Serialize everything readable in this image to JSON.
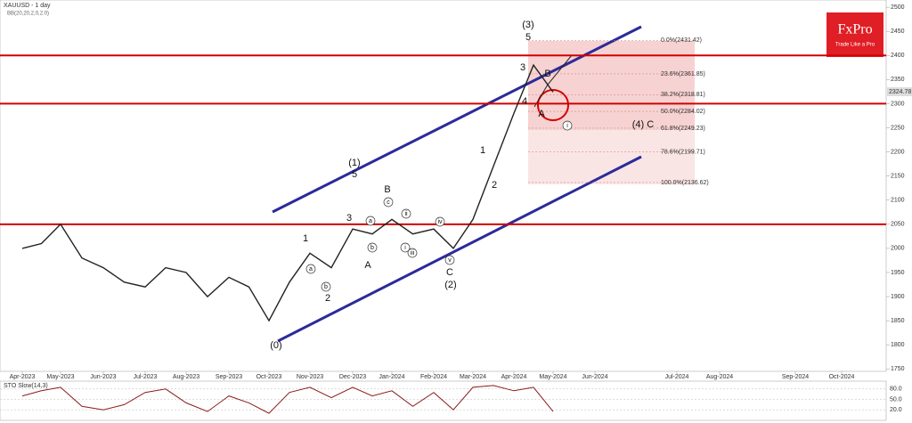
{
  "chart_data": {
    "type": "line",
    "title": "XAUUSD - 1 day",
    "subtitle": "BB(20,20,2,0,2.0)",
    "brand": "FxPro",
    "brand_tagline": "Trade Like a Pro",
    "categories": [
      "Apr-2023",
      null,
      "May-2023",
      null,
      "Jun-2023",
      null,
      "Jul-2023",
      null,
      "Aug-2023",
      null,
      "Sep-2023",
      null,
      "Oct-2023",
      null,
      "Nov-2023",
      null,
      "Dec-2023",
      null,
      "Jan-2024",
      null,
      "Feb-2024",
      null,
      "Mar-2024",
      null,
      "Apr-2024",
      null,
      "May-2024",
      null,
      "Jun-2024",
      null,
      "Jul-2024",
      null,
      "Aug-2024",
      null,
      "Sep-2024",
      null,
      "Oct-2024",
      null
    ],
    "values": [
      2000,
      2010,
      2050,
      1980,
      1960,
      1930,
      1920,
      1960,
      1950,
      1900,
      1940,
      1920,
      1850,
      1930,
      1990,
      1960,
      2040,
      2030,
      2060,
      2030,
      2040,
      2000,
      2060,
      2170,
      2280,
      2380,
      2324,
      null,
      null,
      null,
      null,
      null,
      null,
      null,
      null,
      null,
      null,
      null
    ],
    "color": "#222222",
    "ylim": [
      1745,
      2515
    ],
    "yticks": [
      1750,
      1800,
      1850,
      1900,
      1950,
      2000,
      2050,
      2100,
      2150,
      2200,
      2250,
      2300,
      2350,
      2400,
      2450,
      2500
    ],
    "last_price": {
      "value": 2324.78,
      "label": "2324.78"
    },
    "levels": [
      2400,
      2300,
      2050
    ],
    "level_color": "#d40000",
    "fib": [
      {
        "value": 2431.42,
        "label": "0.0%(2431.42)"
      },
      {
        "value": 2361.85,
        "label": "23.6%(2361.85)"
      },
      {
        "value": 2318.81,
        "label": "38.2%(2318.81)"
      },
      {
        "value": 2284.02,
        "label": "50.0%(2284.02)"
      },
      {
        "value": 2249.23,
        "label": "61.8%(2249.23)"
      },
      {
        "value": 2199.71,
        "label": "78.6%(2199.71)"
      },
      {
        "value": 2136.62,
        "label": "100.0%(2136.62)"
      }
    ],
    "waves": [
      "(3)",
      "5",
      "(1)",
      "5",
      "B",
      "3",
      "1",
      "2",
      "A",
      "(0)",
      "C",
      "(2)",
      "1",
      "2",
      "3",
      "4",
      "B",
      "A",
      "(4) C"
    ],
    "subwaves": [
      "c",
      "a",
      "b",
      "ii",
      "i",
      "iii",
      "iv",
      "v",
      "a",
      "b",
      "i"
    ],
    "oscillator": {
      "name": "STO Slow(14,3)",
      "ylim": [
        0,
        100
      ],
      "yticks": [
        {
          "value": 80,
          "label": "80.0"
        },
        {
          "value": 50,
          "label": "50.0"
        },
        {
          "value": 20,
          "label": "20.0"
        }
      ],
      "values": [
        60,
        75,
        85,
        30,
        20,
        35,
        70,
        80,
        40,
        15,
        60,
        40,
        10,
        70,
        85,
        55,
        85,
        60,
        75,
        30,
        70,
        20,
        85,
        90,
        75,
        85,
        15,
        null,
        null,
        null,
        null,
        null,
        null,
        null,
        null,
        null,
        null,
        null
      ],
      "color": "#8b1a1a"
    }
  }
}
